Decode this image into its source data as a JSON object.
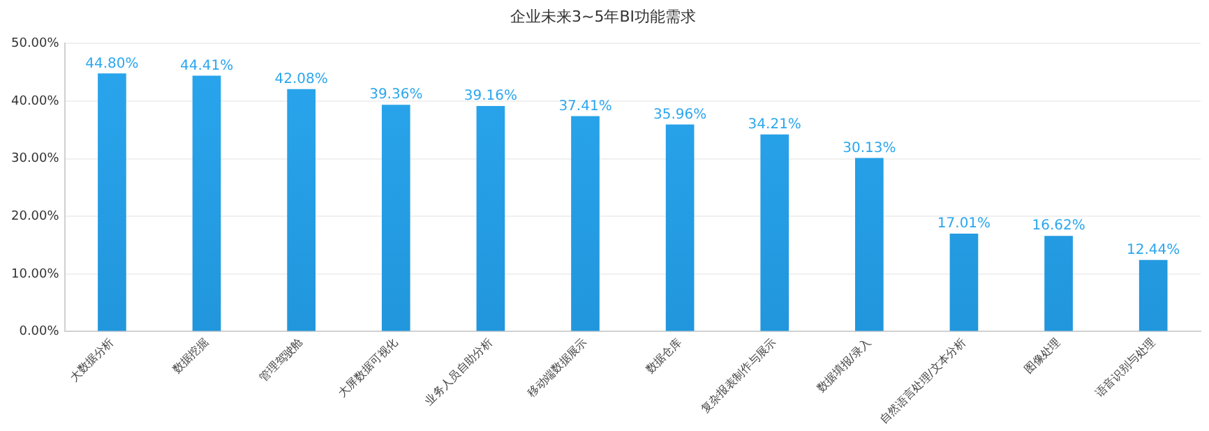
{
  "chart_data": {
    "type": "bar",
    "title": "企业未来3~5年BI功能需求",
    "categories": [
      "大数据分析",
      "数据挖掘",
      "管理驾驶舱",
      "大屏数据可视化",
      "业务人员自助分析",
      "移动端数据展示",
      "数据仓库",
      "复杂报表制作与展示",
      "数据填报/录入",
      "自然语言处理/文本分析",
      "图像处理",
      "语音识别与处理"
    ],
    "values": [
      44.8,
      44.41,
      42.08,
      39.36,
      39.16,
      37.41,
      35.96,
      34.21,
      30.13,
      17.01,
      16.62,
      12.44
    ],
    "value_labels": [
      "44.80%",
      "44.41%",
      "42.08%",
      "39.36%",
      "39.16%",
      "37.41%",
      "35.96%",
      "34.21%",
      "30.13%",
      "17.01%",
      "16.62%",
      "12.44%"
    ],
    "color": "#2aa6ee",
    "ylim": [
      0,
      50
    ],
    "yticks": [
      {
        "value": 0,
        "label": "0.00%"
      },
      {
        "value": 10,
        "label": "10.00%"
      },
      {
        "value": 20,
        "label": "20.00%"
      },
      {
        "value": 30,
        "label": "30.00%"
      },
      {
        "value": 40,
        "label": "40.00%"
      },
      {
        "value": 50,
        "label": "50.00%"
      }
    ],
    "grid": "y",
    "legend": false
  }
}
